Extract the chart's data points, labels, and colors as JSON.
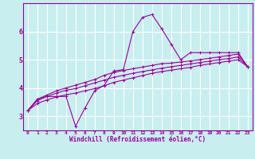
{
  "xlabel": "Windchill (Refroidissement éolien,°C)",
  "background_color": "#c8eef0",
  "grid_color": "#aadddd",
  "line_color": "#990099",
  "xlim": [
    -0.5,
    23.5
  ],
  "ylim": [
    2.5,
    7.0
  ],
  "xticks": [
    0,
    1,
    2,
    3,
    4,
    5,
    6,
    7,
    8,
    9,
    10,
    11,
    12,
    13,
    14,
    15,
    16,
    17,
    18,
    19,
    20,
    21,
    22,
    23
  ],
  "yticks": [
    3,
    4,
    5,
    6
  ],
  "line1": [
    3.2,
    3.6,
    3.7,
    3.7,
    3.7,
    2.65,
    3.3,
    3.9,
    4.1,
    4.6,
    4.65,
    6.0,
    6.5,
    6.6,
    6.1,
    5.55,
    5.0,
    5.25,
    5.25,
    5.25,
    5.25,
    5.25,
    5.25,
    4.75
  ],
  "line2": [
    3.2,
    3.6,
    3.75,
    3.9,
    4.0,
    4.1,
    4.2,
    4.3,
    4.45,
    4.55,
    4.62,
    4.68,
    4.74,
    4.8,
    4.86,
    4.88,
    4.92,
    4.96,
    5.0,
    5.05,
    5.1,
    5.15,
    5.2,
    4.75
  ],
  "line3": [
    3.2,
    3.55,
    3.7,
    3.82,
    3.92,
    3.98,
    4.08,
    4.18,
    4.28,
    4.38,
    4.45,
    4.52,
    4.58,
    4.64,
    4.7,
    4.75,
    4.8,
    4.85,
    4.9,
    4.95,
    5.0,
    5.04,
    5.1,
    4.75
  ],
  "line4": [
    3.2,
    3.45,
    3.58,
    3.68,
    3.76,
    3.82,
    3.9,
    3.98,
    4.08,
    4.2,
    4.28,
    4.36,
    4.44,
    4.52,
    4.58,
    4.63,
    4.68,
    4.73,
    4.8,
    4.85,
    4.9,
    4.95,
    5.0,
    4.75
  ]
}
